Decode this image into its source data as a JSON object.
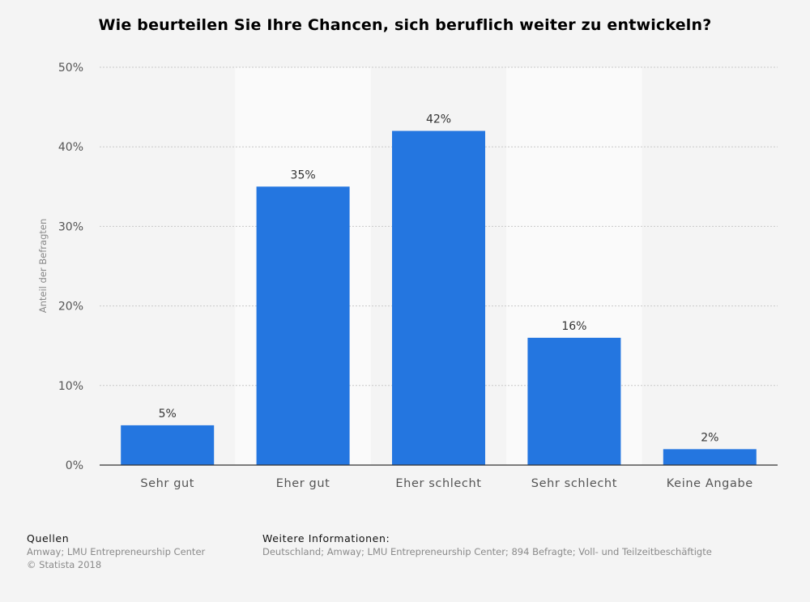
{
  "chart_data": {
    "type": "bar",
    "title": "Wie beurteilen Sie Ihre Chancen, sich beruflich weiter zu entwickeln?",
    "xlabel": "",
    "ylabel": "Anteil der Befragten",
    "categories": [
      "Sehr gut",
      "Eher gut",
      "Eher schlecht",
      "Sehr schlecht",
      "Keine Angabe"
    ],
    "values": [
      5,
      35,
      42,
      16,
      2
    ],
    "value_labels": [
      "5%",
      "35%",
      "42%",
      "16%",
      "2%"
    ],
    "ylim": [
      0,
      50
    ],
    "yticks": [
      0,
      10,
      20,
      30,
      40,
      50
    ],
    "ytick_labels": [
      "0%",
      "10%",
      "20%",
      "30%",
      "40%",
      "50%"
    ],
    "grid": true,
    "bar_color": "#2476e0"
  },
  "footer": {
    "sources_heading": "Quellen",
    "sources_line1": "Amway; LMU Entrepreneurship Center",
    "sources_line2": "© Statista 2018",
    "info_heading": "Weitere Informationen:",
    "info_text": "Deutschland; Amway; LMU Entrepreneurship Center; 894 Befragte; Voll- und Teilzeitbeschäftigte"
  }
}
